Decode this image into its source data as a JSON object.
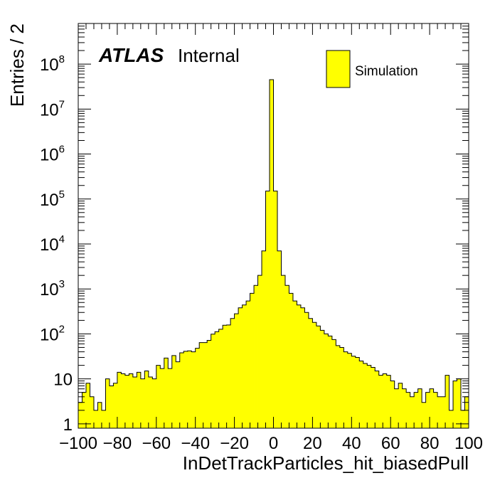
{
  "chart_data": {
    "type": "bar",
    "histogram": true,
    "title": "",
    "xlabel": "InDetTrackParticles_hit_biasedPull",
    "ylabel": "Entries / 2",
    "xlim": [
      -100,
      100
    ],
    "ylim": [
      0.8,
      800000000
    ],
    "yscale": "log",
    "bin_width": 2,
    "x_ticks": [
      "−100",
      "−80",
      "−60",
      "−40",
      "−20",
      "0",
      "20",
      "40",
      "60",
      "80",
      "100"
    ],
    "y_ticks": [
      {
        "value": 1,
        "base": "1",
        "exp": ""
      },
      {
        "value": 10,
        "base": "10",
        "exp": ""
      },
      {
        "value": 100,
        "base": "10",
        "exp": "2"
      },
      {
        "value": 1000,
        "base": "10",
        "exp": "3"
      },
      {
        "value": 10000,
        "base": "10",
        "exp": "4"
      },
      {
        "value": 100000,
        "base": "10",
        "exp": "5"
      },
      {
        "value": 1000000,
        "base": "10",
        "exp": "6"
      },
      {
        "value": 10000000,
        "base": "10",
        "exp": "7"
      },
      {
        "value": 100000000,
        "base": "10",
        "exp": "8"
      }
    ],
    "atlas_label": "ATLAS",
    "atlas_sublabel": "Internal",
    "legend_position": "top-right",
    "series": [
      {
        "name": "Simulation",
        "color": "#ffff00",
        "edge_color": "#000000",
        "x": [
          -99,
          -97,
          -95,
          -93,
          -91,
          -89,
          -87,
          -85,
          -83,
          -81,
          -79,
          -77,
          -75,
          -73,
          -71,
          -69,
          -67,
          -65,
          -63,
          -61,
          -59,
          -57,
          -55,
          -53,
          -51,
          -49,
          -47,
          -45,
          -43,
          -41,
          -39,
          -37,
          -35,
          -33,
          -31,
          -29,
          -27,
          -25,
          -23,
          -21,
          -19,
          -17,
          -15,
          -13,
          -11,
          -9,
          -7,
          -5,
          -3,
          -1,
          1,
          3,
          5,
          7,
          9,
          11,
          13,
          15,
          17,
          19,
          21,
          23,
          25,
          27,
          29,
          31,
          33,
          35,
          37,
          39,
          41,
          43,
          45,
          47,
          49,
          51,
          53,
          55,
          57,
          59,
          61,
          63,
          65,
          67,
          69,
          71,
          73,
          75,
          77,
          79,
          81,
          83,
          85,
          87,
          89,
          91,
          93,
          95,
          97,
          99
        ],
        "values": [
          3,
          5,
          8,
          4,
          2,
          3,
          2,
          10,
          7,
          8,
          14,
          13,
          12,
          13,
          11,
          14,
          10,
          15,
          11,
          10,
          20,
          17,
          29,
          17,
          33,
          24,
          38,
          41,
          42,
          40,
          48,
          64,
          64,
          72,
          99,
          112,
          127,
          156,
          158,
          220,
          280,
          380,
          440,
          540,
          800,
          1200,
          2000,
          7000,
          150000,
          45000000,
          150000,
          7000,
          2000,
          1200,
          800,
          540,
          440,
          380,
          300,
          220,
          180,
          150,
          120,
          100,
          90,
          75,
          55,
          50,
          40,
          37,
          32,
          30,
          25,
          22,
          20,
          18,
          15,
          12,
          13,
          12,
          9,
          6,
          8,
          6,
          5,
          4,
          5,
          6,
          3,
          5,
          6,
          5,
          4,
          4,
          12,
          2,
          9,
          10,
          2,
          4
        ]
      }
    ]
  }
}
